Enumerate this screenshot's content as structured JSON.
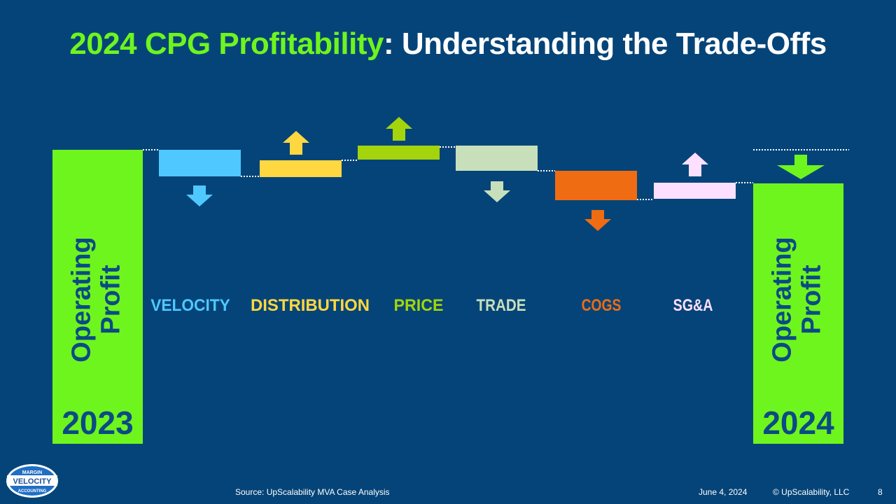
{
  "title": {
    "highlight": "2024 CPG Profitability",
    "rest": ": Understanding the Trade-Offs",
    "highlight_color": "#6ef51e",
    "rest_color": "#ffffff"
  },
  "chart_data": {
    "type": "bar",
    "subtype": "waterfall",
    "start": {
      "label": "Operating Profit",
      "year": "2023",
      "color": "#6ef51e"
    },
    "end": {
      "label": "Operating Profit",
      "year": "2024",
      "color": "#6ef51e",
      "direction": "down"
    },
    "steps": [
      {
        "name": "VELOCITY",
        "direction": "down",
        "color": "#4fc8ff"
      },
      {
        "name": "DISTRIBUTION",
        "direction": "up",
        "color": "#ffd740"
      },
      {
        "name": "PRICE",
        "direction": "up",
        "color": "#a3d40c"
      },
      {
        "name": "TRADE",
        "direction": "down",
        "color": "#c8dfbb"
      },
      {
        "name": "COGS",
        "direction": "down",
        "color": "#ef6c12"
      },
      {
        "name": "SG&A",
        "direction": "up",
        "color": "#fde0ff"
      }
    ],
    "operating_profit_label_color": "#0b4a85",
    "connector_color": "#ffffff"
  },
  "footer": {
    "source": "Source: UpScalability MVA Case Analysis",
    "date": "June 4, 2024",
    "copyright": "© UpScalability, LLC",
    "page": "8"
  },
  "logo": {
    "top": "MARGIN",
    "middle": "VELOCITY",
    "bottom": "ACCOUNTING",
    "fill": "#ffffff",
    "ring": "#3a8fd8"
  }
}
